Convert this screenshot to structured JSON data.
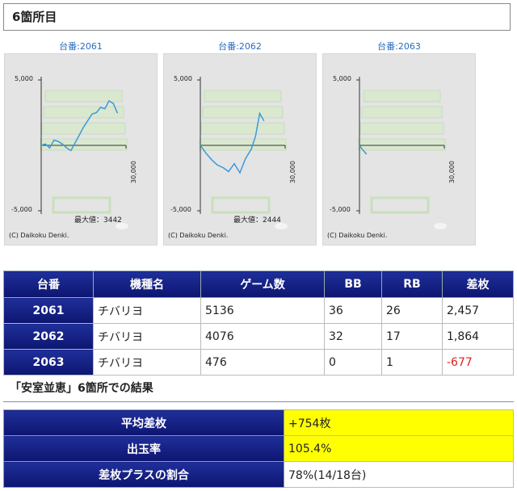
{
  "section": {
    "title": "6箇所目"
  },
  "graphs": [
    {
      "title": "台番:2061",
      "y_top": "5,000",
      "y_bottom": "-5,000",
      "x_end": "30,000",
      "max_label": "最大値：3442",
      "copyright": "(C) Daikoku Denki.",
      "chart_data": {
        "type": "line",
        "x_range": [
          0,
          30000
        ],
        "y_range": [
          -5000,
          5000
        ],
        "x": [
          0,
          1500,
          3000,
          4500,
          6000,
          7500,
          9000,
          10500,
          12000,
          13500,
          15000,
          16500,
          18000,
          19500,
          21000,
          22500,
          24000,
          25500,
          27000
        ],
        "y": [
          0,
          100,
          -200,
          400,
          300,
          100,
          -200,
          -400,
          200,
          800,
          1400,
          1900,
          2400,
          2500,
          2900,
          2800,
          3400,
          3200,
          2457
        ]
      }
    },
    {
      "title": "台番:2062",
      "y_top": "5,000",
      "y_bottom": "-5,000",
      "x_end": "30,000",
      "max_label": "最大値：2444",
      "copyright": "(C) Daikoku Denki.",
      "chart_data": {
        "type": "line",
        "x_range": [
          0,
          30000
        ],
        "y_range": [
          -5000,
          5000
        ],
        "x": [
          0,
          2000,
          4000,
          6000,
          8000,
          10000,
          12000,
          14000,
          16000,
          18000,
          19500,
          21000,
          22500
        ],
        "y": [
          0,
          -600,
          -1100,
          -1500,
          -1700,
          -2000,
          -1400,
          -2100,
          -1000,
          -300,
          700,
          2444,
          1864
        ]
      }
    },
    {
      "title": "台番:2063",
      "y_top": "5,000",
      "y_bottom": "-5,000",
      "x_end": "30,000",
      "max_label": "",
      "copyright": "(C) Daikoku Denki.",
      "chart_data": {
        "type": "line",
        "x_range": [
          0,
          30000
        ],
        "y_range": [
          -5000,
          5000
        ],
        "x": [
          0,
          1000,
          2500
        ],
        "y": [
          0,
          -300,
          -677
        ]
      }
    }
  ],
  "table": {
    "headers": [
      "台番",
      "機種名",
      "ゲーム数",
      "BB",
      "RB",
      "差枚"
    ],
    "rows": [
      {
        "no": "2061",
        "name": "チバリヨ",
        "games": "5136",
        "bb": "36",
        "rb": "26",
        "diff": "2,457"
      },
      {
        "no": "2062",
        "name": "チバリヨ",
        "games": "4076",
        "bb": "32",
        "rb": "17",
        "diff": "1,864"
      },
      {
        "no": "2063",
        "name": "チバリヨ",
        "games": "476",
        "bb": "0",
        "rb": "1",
        "diff": "-677"
      }
    ]
  },
  "result": {
    "title": "「安室並恵」6箇所での結果",
    "rows": [
      {
        "label": "平均差枚",
        "value": "+754枚"
      },
      {
        "label": "出玉率",
        "value": "105.4%"
      },
      {
        "label": "差枚プラスの割合",
        "value": "78%(14/18台)"
      }
    ]
  },
  "colors": {
    "header_bg": "#12207e",
    "line": "#3a9ad9",
    "highlight": "#ffff00",
    "negative": "#e02020"
  }
}
